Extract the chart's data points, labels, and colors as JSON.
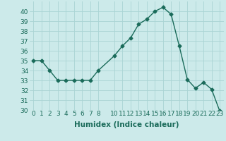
{
  "x": [
    0,
    1,
    2,
    3,
    4,
    5,
    6,
    7,
    8,
    10,
    11,
    12,
    13,
    14,
    15,
    16,
    17,
    18,
    19,
    20,
    21,
    22,
    23
  ],
  "y": [
    35,
    35,
    34,
    33,
    33,
    33,
    33,
    33,
    34,
    35.5,
    36.5,
    37.3,
    38.7,
    39.2,
    40.0,
    40.4,
    39.7,
    36.5,
    33.1,
    32.2,
    32.8,
    32.1,
    29.9
  ],
  "line_color": "#1a6b5a",
  "marker": "D",
  "markersize": 2.5,
  "bg_color": "#cceaea",
  "grid_color": "#aad4d4",
  "xlabel": "Humidex (Indice chaleur)",
  "ylim": [
    30,
    41
  ],
  "xlim": [
    -0.5,
    23.5
  ],
  "xticks": [
    0,
    1,
    2,
    3,
    4,
    5,
    6,
    7,
    8,
    10,
    11,
    12,
    13,
    14,
    15,
    16,
    17,
    18,
    19,
    20,
    21,
    22,
    23
  ],
  "yticks": [
    30,
    31,
    32,
    33,
    34,
    35,
    36,
    37,
    38,
    39,
    40
  ],
  "xlabel_fontsize": 7.5,
  "tick_fontsize": 6.5,
  "linewidth": 1.0
}
